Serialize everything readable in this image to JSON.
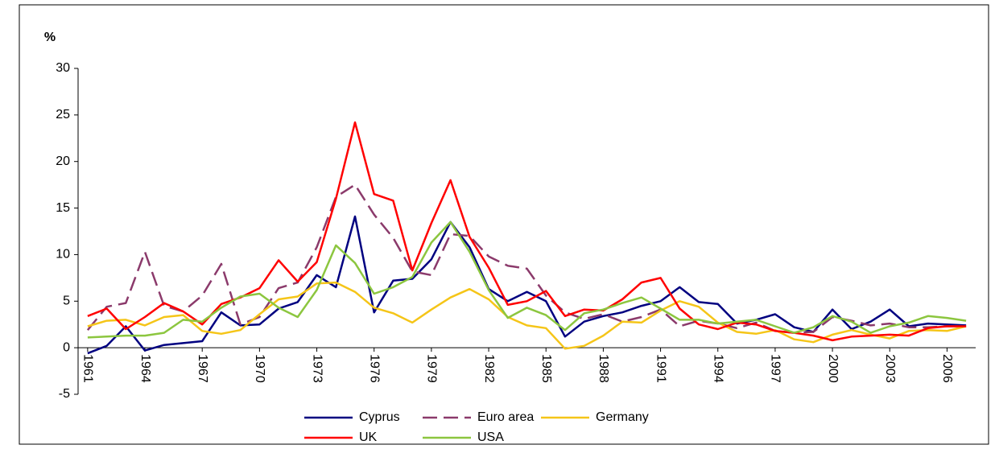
{
  "chart_data": {
    "type": "line",
    "y_label": "%",
    "x": [
      1961,
      1962,
      1963,
      1964,
      1965,
      1966,
      1967,
      1968,
      1969,
      1970,
      1971,
      1972,
      1973,
      1974,
      1975,
      1976,
      1977,
      1978,
      1979,
      1980,
      1981,
      1982,
      1983,
      1984,
      1985,
      1986,
      1987,
      1988,
      1989,
      1990,
      1991,
      1992,
      1993,
      1994,
      1995,
      1996,
      1997,
      1998,
      1999,
      2000,
      2001,
      2002,
      2003,
      2004,
      2005,
      2006,
      2007
    ],
    "xticks": [
      1961,
      1964,
      1967,
      1970,
      1973,
      1976,
      1979,
      1982,
      1985,
      1988,
      1991,
      1994,
      1997,
      2000,
      2003,
      2006
    ],
    "ylim": [
      -5,
      30
    ],
    "yticks": [
      -5,
      0,
      5,
      10,
      15,
      20,
      25,
      30
    ],
    "grid": false,
    "legend": "bottom",
    "series": [
      {
        "name": "Cyprus",
        "color": "#000080",
        "values": [
          -0.6,
          0.2,
          2.3,
          -0.3,
          0.3,
          0.5,
          0.7,
          3.8,
          2.4,
          2.5,
          4.2,
          4.9,
          7.8,
          6.5,
          14.1,
          3.8,
          7.2,
          7.4,
          9.5,
          13.5,
          10.8,
          6.3,
          5.0,
          6.0,
          5.0,
          1.2,
          2.8,
          3.4,
          3.8,
          4.5,
          5.0,
          6.5,
          4.9,
          4.7,
          2.6,
          3.0,
          3.6,
          2.2,
          1.7,
          4.1,
          2.0,
          2.8,
          4.1,
          2.3,
          2.6,
          2.5,
          2.4
        ]
      },
      {
        "name": "Euro area",
        "color": "#8b3a6b",
        "line_style": "dashed",
        "values": [
          1.9,
          4.4,
          4.8,
          10.3,
          4.5,
          3.9,
          5.6,
          9.0,
          2.5,
          3.3,
          6.4,
          7.0,
          10.8,
          16.2,
          17.5,
          14.3,
          11.8,
          8.2,
          7.8,
          12.2,
          12.0,
          9.8,
          8.8,
          8.5,
          5.6,
          3.8,
          3.1,
          3.6,
          2.8,
          3.3,
          4.1,
          2.3,
          2.9,
          2.6,
          2.1,
          2.7,
          1.8,
          1.6,
          1.7,
          3.3,
          2.9,
          2.4,
          2.6,
          2.2,
          2.2,
          2.3,
          2.3
        ]
      },
      {
        "name": "Germany",
        "color": "#f5c518",
        "values": [
          2.3,
          2.9,
          3.0,
          2.4,
          3.3,
          3.5,
          1.8,
          1.5,
          1.9,
          3.6,
          5.2,
          5.5,
          6.9,
          7.0,
          6.0,
          4.3,
          3.7,
          2.7,
          4.1,
          5.4,
          6.3,
          5.2,
          3.3,
          2.4,
          2.1,
          -0.1,
          0.2,
          1.3,
          2.8,
          2.7,
          4.0,
          5.0,
          4.4,
          2.7,
          1.7,
          1.5,
          1.9,
          0.9,
          0.6,
          1.4,
          1.9,
          1.4,
          1.0,
          1.8,
          1.9,
          1.8,
          2.3
        ]
      },
      {
        "name": "UK",
        "color": "#ff0000",
        "values": [
          3.4,
          4.2,
          2.0,
          3.3,
          4.8,
          3.9,
          2.5,
          4.7,
          5.4,
          6.4,
          9.4,
          7.1,
          9.2,
          16.0,
          24.2,
          16.5,
          15.8,
          8.3,
          13.4,
          18.0,
          11.9,
          8.6,
          4.6,
          5.0,
          6.1,
          3.4,
          4.1,
          4.0,
          5.2,
          7.0,
          7.5,
          4.2,
          2.5,
          2.0,
          2.7,
          2.5,
          1.8,
          1.6,
          1.3,
          0.8,
          1.2,
          1.3,
          1.4,
          1.3,
          2.1,
          2.3,
          2.3
        ]
      },
      {
        "name": "USA",
        "color": "#8cc63f",
        "values": [
          1.1,
          1.2,
          1.3,
          1.3,
          1.6,
          3.0,
          2.8,
          4.3,
          5.5,
          5.8,
          4.3,
          3.3,
          6.2,
          11.0,
          9.1,
          5.8,
          6.5,
          7.6,
          11.3,
          13.5,
          10.3,
          6.2,
          3.2,
          4.3,
          3.5,
          1.9,
          3.7,
          4.1,
          4.8,
          5.4,
          4.2,
          3.0,
          3.0,
          2.6,
          2.8,
          3.0,
          2.3,
          1.6,
          2.2,
          3.4,
          2.8,
          1.6,
          2.3,
          2.7,
          3.4,
          3.2,
          2.9
        ]
      }
    ]
  }
}
